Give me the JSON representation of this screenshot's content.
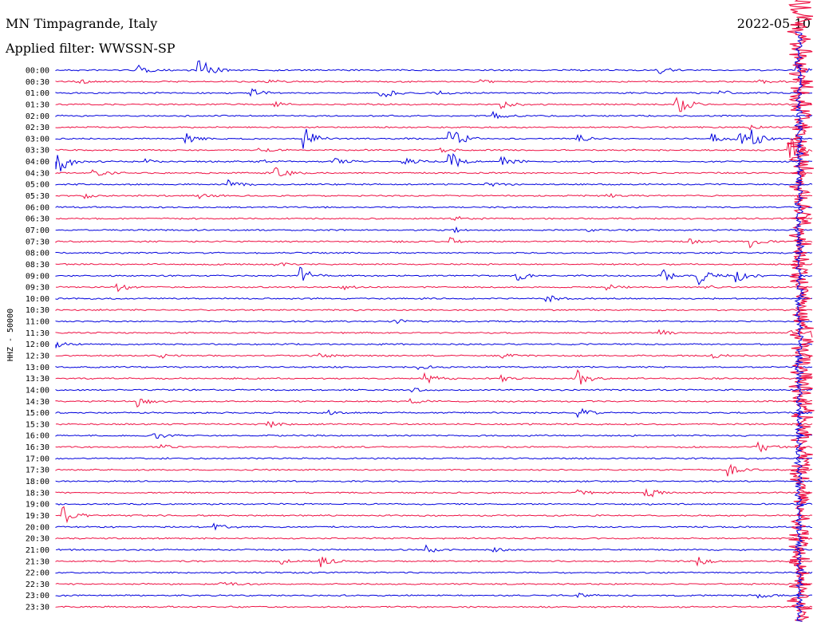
{
  "header": {
    "station": "MN Timpagrande, Italy",
    "date": "2022-05-10",
    "filter": "Applied filter: WWSSN-SP"
  },
  "chart_data": {
    "type": "line",
    "title": "MN Timpagrande, Italy",
    "ylabel": "HHZ - 50000",
    "colors": {
      "even_rows": "#0000dd",
      "odd_rows": "#ee1144"
    },
    "rows": [
      "00:00",
      "00:30",
      "01:00",
      "01:30",
      "02:00",
      "02:30",
      "03:00",
      "03:30",
      "04:00",
      "04:30",
      "05:00",
      "05:30",
      "06:00",
      "06:30",
      "07:00",
      "07:30",
      "08:00",
      "08:30",
      "09:00",
      "09:30",
      "10:00",
      "10:30",
      "11:00",
      "11:30",
      "12:00",
      "12:30",
      "13:00",
      "13:30",
      "14:00",
      "14:30",
      "15:00",
      "15:30",
      "16:00",
      "16:30",
      "17:00",
      "17:30",
      "18:00",
      "18:30",
      "19:00",
      "19:30",
      "20:00",
      "20:30",
      "21:00",
      "21:30",
      "22:00",
      "22:30",
      "23:00",
      "23:30"
    ],
    "events": [
      {
        "row": 0,
        "x": 0.11,
        "amp": 0.4
      },
      {
        "row": 0,
        "x": 0.19,
        "amp": 1.2
      },
      {
        "row": 0,
        "x": 0.8,
        "amp": 0.3
      },
      {
        "row": 0,
        "x": 0.98,
        "amp": 0.3
      },
      {
        "row": 1,
        "x": 0.03,
        "amp": 0.25
      },
      {
        "row": 1,
        "x": 0.28,
        "amp": 0.2
      },
      {
        "row": 1,
        "x": 0.56,
        "amp": 0.2
      },
      {
        "row": 1,
        "x": 0.93,
        "amp": 0.2
      },
      {
        "row": 2,
        "x": 0.26,
        "amp": 0.5
      },
      {
        "row": 2,
        "x": 0.43,
        "amp": 0.5
      },
      {
        "row": 2,
        "x": 0.5,
        "amp": 0.3
      },
      {
        "row": 2,
        "x": 0.88,
        "amp": 0.25
      },
      {
        "row": 3,
        "x": 0.29,
        "amp": 0.2
      },
      {
        "row": 3,
        "x": 0.59,
        "amp": 0.3
      },
      {
        "row": 3,
        "x": 0.82,
        "amp": 1.1
      },
      {
        "row": 4,
        "x": 0.58,
        "amp": 0.5
      },
      {
        "row": 5,
        "x": 0.92,
        "amp": 0.2
      },
      {
        "row": 6,
        "x": 0.17,
        "amp": 0.6
      },
      {
        "row": 6,
        "x": 0.33,
        "amp": 0.9
      },
      {
        "row": 6,
        "x": 0.52,
        "amp": 1.6
      },
      {
        "row": 6,
        "x": 0.69,
        "amp": 0.4
      },
      {
        "row": 6,
        "x": 0.87,
        "amp": 0.4
      },
      {
        "row": 6,
        "x": 0.9,
        "amp": 0.8
      },
      {
        "row": 6,
        "x": 0.92,
        "amp": 0.7
      },
      {
        "row": 7,
        "x": 0.27,
        "amp": 0.2
      },
      {
        "row": 7,
        "x": 0.51,
        "amp": 0.2
      },
      {
        "row": 7,
        "x": 0.97,
        "amp": 1.2
      },
      {
        "row": 8,
        "x": 0.0,
        "amp": 1.6
      },
      {
        "row": 8,
        "x": 0.12,
        "amp": 0.2
      },
      {
        "row": 8,
        "x": 0.27,
        "amp": 0.2
      },
      {
        "row": 8,
        "x": 0.37,
        "amp": 0.3
      },
      {
        "row": 8,
        "x": 0.46,
        "amp": 0.4
      },
      {
        "row": 8,
        "x": 0.52,
        "amp": 1.0
      },
      {
        "row": 8,
        "x": 0.59,
        "amp": 0.5
      },
      {
        "row": 9,
        "x": 0.05,
        "amp": 0.4
      },
      {
        "row": 9,
        "x": 0.29,
        "amp": 0.8
      },
      {
        "row": 10,
        "x": 0.23,
        "amp": 0.4
      },
      {
        "row": 10,
        "x": 0.57,
        "amp": 0.2
      },
      {
        "row": 11,
        "x": 0.04,
        "amp": 0.2
      },
      {
        "row": 11,
        "x": 0.19,
        "amp": 0.2
      },
      {
        "row": 11,
        "x": 0.73,
        "amp": 0.2
      },
      {
        "row": 13,
        "x": 0.53,
        "amp": 0.2
      },
      {
        "row": 14,
        "x": 0.53,
        "amp": 0.2
      },
      {
        "row": 14,
        "x": 0.7,
        "amp": 0.2
      },
      {
        "row": 15,
        "x": 0.44,
        "amp": 0.2
      },
      {
        "row": 15,
        "x": 0.52,
        "amp": 0.4
      },
      {
        "row": 15,
        "x": 0.84,
        "amp": 0.2
      },
      {
        "row": 15,
        "x": 0.92,
        "amp": 0.5
      },
      {
        "row": 17,
        "x": 0.29,
        "amp": 0.2
      },
      {
        "row": 18,
        "x": 0.32,
        "amp": 1.0
      },
      {
        "row": 18,
        "x": 0.61,
        "amp": 0.5
      },
      {
        "row": 18,
        "x": 0.8,
        "amp": 0.7
      },
      {
        "row": 18,
        "x": 0.85,
        "amp": 0.9
      },
      {
        "row": 18,
        "x": 0.9,
        "amp": 0.6
      },
      {
        "row": 19,
        "x": 0.08,
        "amp": 0.5
      },
      {
        "row": 19,
        "x": 0.38,
        "amp": 0.2
      },
      {
        "row": 19,
        "x": 0.73,
        "amp": 0.2
      },
      {
        "row": 19,
        "x": 0.86,
        "amp": 0.2
      },
      {
        "row": 20,
        "x": 0.65,
        "amp": 0.3
      },
      {
        "row": 22,
        "x": 0.45,
        "amp": 0.2
      },
      {
        "row": 23,
        "x": 0.8,
        "amp": 0.2
      },
      {
        "row": 23,
        "x": 0.97,
        "amp": 0.2
      },
      {
        "row": 23,
        "x": 1.0,
        "amp": 0.6
      },
      {
        "row": 24,
        "x": 0.0,
        "amp": 0.3
      },
      {
        "row": 25,
        "x": 0.14,
        "amp": 0.2
      },
      {
        "row": 25,
        "x": 0.35,
        "amp": 0.3
      },
      {
        "row": 25,
        "x": 0.59,
        "amp": 0.2
      },
      {
        "row": 25,
        "x": 0.87,
        "amp": 0.2
      },
      {
        "row": 26,
        "x": 0.48,
        "amp": 0.2
      },
      {
        "row": 27,
        "x": 0.49,
        "amp": 0.4
      },
      {
        "row": 27,
        "x": 0.59,
        "amp": 0.3
      },
      {
        "row": 27,
        "x": 0.69,
        "amp": 0.7
      },
      {
        "row": 28,
        "x": 0.47,
        "amp": 0.2
      },
      {
        "row": 29,
        "x": 0.11,
        "amp": 0.5
      },
      {
        "row": 29,
        "x": 0.47,
        "amp": 0.2
      },
      {
        "row": 30,
        "x": 0.36,
        "amp": 0.2
      },
      {
        "row": 30,
        "x": 0.69,
        "amp": 0.5
      },
      {
        "row": 31,
        "x": 0.28,
        "amp": 0.3
      },
      {
        "row": 32,
        "x": 0.13,
        "amp": 0.4
      },
      {
        "row": 33,
        "x": 0.14,
        "amp": 0.2
      },
      {
        "row": 33,
        "x": 0.93,
        "amp": 0.6
      },
      {
        "row": 35,
        "x": 0.89,
        "amp": 0.5
      },
      {
        "row": 37,
        "x": 0.69,
        "amp": 0.2
      },
      {
        "row": 37,
        "x": 0.78,
        "amp": 0.6
      },
      {
        "row": 39,
        "x": 0.01,
        "amp": 0.8
      },
      {
        "row": 40,
        "x": 0.21,
        "amp": 0.3
      },
      {
        "row": 42,
        "x": 0.49,
        "amp": 0.4
      },
      {
        "row": 42,
        "x": 0.58,
        "amp": 0.2
      },
      {
        "row": 43,
        "x": 0.3,
        "amp": 0.2
      },
      {
        "row": 43,
        "x": 0.35,
        "amp": 0.5
      },
      {
        "row": 43,
        "x": 0.85,
        "amp": 0.4
      },
      {
        "row": 45,
        "x": 0.22,
        "amp": 0.2
      },
      {
        "row": 46,
        "x": 0.69,
        "amp": 0.2
      },
      {
        "row": 46,
        "x": 0.93,
        "amp": 0.2
      }
    ],
    "big_event": {
      "start_row": 0,
      "end_row": 47,
      "x": 0.985
    }
  }
}
